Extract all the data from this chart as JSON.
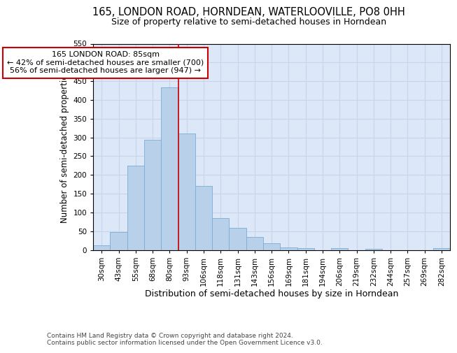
{
  "title": "165, LONDON ROAD, HORNDEAN, WATERLOOVILLE, PO8 0HH",
  "subtitle": "Size of property relative to semi-detached houses in Horndean",
  "xlabel": "Distribution of semi-detached houses by size in Horndean",
  "ylabel": "Number of semi-detached properties",
  "footnote": "Contains HM Land Registry data © Crown copyright and database right 2024.\nContains public sector information licensed under the Open Government Licence v3.0.",
  "categories": [
    "30sqm",
    "43sqm",
    "55sqm",
    "68sqm",
    "80sqm",
    "93sqm",
    "106sqm",
    "118sqm",
    "131sqm",
    "143sqm",
    "156sqm",
    "169sqm",
    "181sqm",
    "194sqm",
    "206sqm",
    "219sqm",
    "232sqm",
    "244sqm",
    "257sqm",
    "269sqm",
    "282sqm"
  ],
  "values": [
    12,
    48,
    224,
    293,
    433,
    311,
    170,
    85,
    58,
    35,
    17,
    7,
    5,
    0,
    4,
    0,
    3,
    0,
    0,
    0,
    4
  ],
  "bar_color": "#b8d0ea",
  "bar_edge_color": "#7aadd4",
  "property_line_x": 4.5,
  "annotation_text_line1": "165 LONDON ROAD: 85sqm",
  "annotation_text_line2": "← 42% of semi-detached houses are smaller (700)",
  "annotation_text_line3": "56% of semi-detached houses are larger (947) →",
  "annotation_box_color": "#ffffff",
  "annotation_box_edge": "#cc0000",
  "line_color": "#cc0000",
  "ylim": [
    0,
    550
  ],
  "yticks": [
    0,
    50,
    100,
    150,
    200,
    250,
    300,
    350,
    400,
    450,
    500,
    550
  ],
  "grid_color": "#c8d4e8",
  "bg_color": "#dce8f8",
  "title_fontsize": 10.5,
  "subtitle_fontsize": 9,
  "tick_fontsize": 7.5,
  "ylabel_fontsize": 8.5,
  "xlabel_fontsize": 9,
  "annotation_fontsize": 8,
  "footnote_fontsize": 6.5
}
